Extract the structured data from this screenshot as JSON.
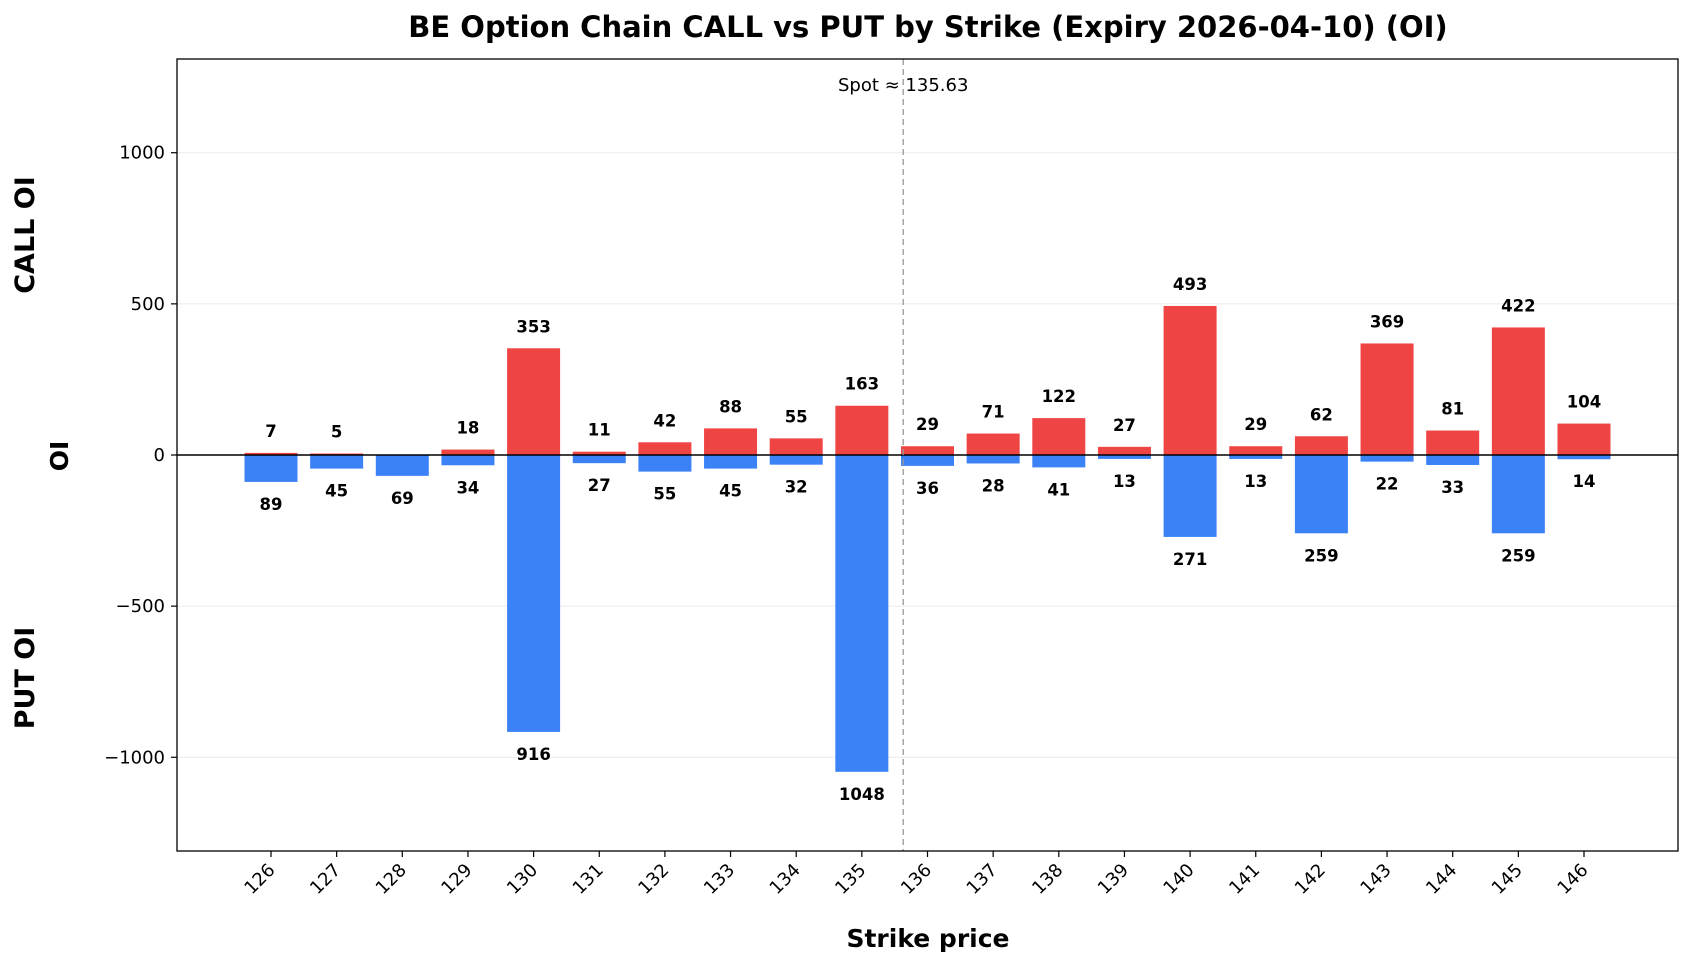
{
  "chart_data": {
    "type": "bar",
    "title": "BE Option Chain CALL vs PUT by Strike (Expiry 2026-04-10) (OI)",
    "xlabel": "Strike price",
    "ylabel": "OI",
    "side_labels": {
      "top": "CALL OI",
      "bottom": "PUT OI"
    },
    "categories": [
      "126",
      "127",
      "128",
      "129",
      "130",
      "131",
      "132",
      "133",
      "134",
      "135",
      "136",
      "137",
      "138",
      "139",
      "140",
      "141",
      "142",
      "143",
      "144",
      "145",
      "146"
    ],
    "series": [
      {
        "name": "CALL",
        "color": "#ef4444",
        "values": [
          7,
          5,
          0,
          18,
          353,
          11,
          42,
          88,
          55,
          163,
          29,
          71,
          122,
          27,
          493,
          29,
          62,
          369,
          81,
          422,
          104
        ]
      },
      {
        "name": "PUT",
        "color": "#3b82f6",
        "values": [
          89,
          45,
          69,
          34,
          916,
          27,
          55,
          45,
          32,
          1048,
          36,
          28,
          41,
          13,
          271,
          13,
          259,
          22,
          33,
          259,
          14
        ]
      }
    ],
    "call_labels": [
      "7",
      "5",
      "",
      "18",
      "353",
      "11",
      "42",
      "88",
      "55",
      "163",
      "29",
      "71",
      "122",
      "27",
      "493",
      "29",
      "62",
      "369",
      "81",
      "422",
      "104"
    ],
    "put_labels": [
      "89",
      "45",
      "69",
      "34",
      "916",
      "27",
      "55",
      "45",
      "32",
      "1048",
      "36",
      "28",
      "41",
      "13",
      "271",
      "13",
      "259",
      "22",
      "33",
      "259",
      "14"
    ],
    "ylim": [
      -1310,
      1310
    ],
    "yticks": [
      1000,
      500,
      0,
      -500,
      -1000
    ],
    "ytick_labels": [
      "1000",
      "500",
      "0",
      "−500",
      "−1000"
    ],
    "spot": {
      "value": 135.63,
      "label": "Spot ≈ 135.63"
    },
    "grid": true,
    "legend": "none"
  }
}
